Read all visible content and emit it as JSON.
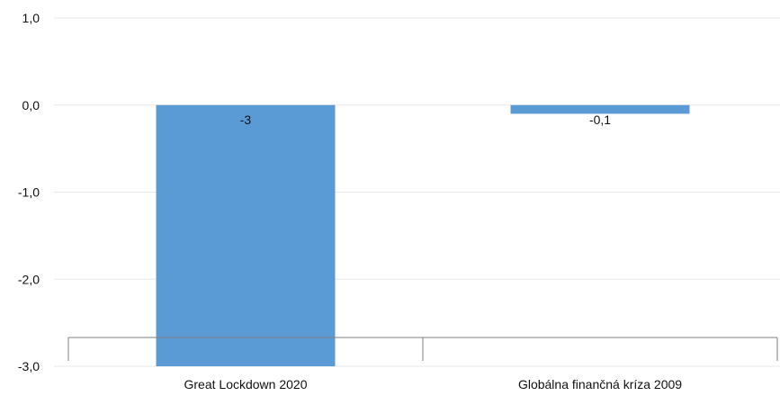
{
  "chart_data": {
    "type": "bar",
    "categories": [
      "Great Lockdown 2020",
      "Globálna finančná kríza 2009"
    ],
    "values": [
      -3,
      -0.1
    ],
    "data_labels": [
      "-3",
      "-0,1"
    ],
    "ylim": [
      -3,
      1
    ],
    "y_ticks": [
      1,
      0,
      -1,
      -2,
      -3
    ],
    "y_tick_labels": [
      "1,0",
      "0,0",
      "-1,0",
      "-2,0",
      "-3,0"
    ],
    "grid": true,
    "bar_color": "#5b9bd5",
    "gridline_color": "#e8e8e8",
    "axis_color": "#7f7f7f"
  }
}
